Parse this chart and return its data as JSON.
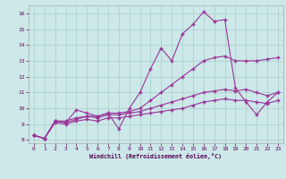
{
  "xlabel": "Windchill (Refroidissement éolien,°C)",
  "background_color": "#cce8e8",
  "grid_color": "#aacccc",
  "line_color": "#993399",
  "xlim": [
    -0.5,
    23.5
  ],
  "ylim": [
    7.8,
    16.5
  ],
  "yticks": [
    8,
    9,
    10,
    11,
    12,
    13,
    14,
    15,
    16
  ],
  "xticks": [
    0,
    1,
    2,
    3,
    4,
    5,
    6,
    7,
    8,
    9,
    10,
    11,
    12,
    13,
    14,
    15,
    16,
    17,
    18,
    19,
    20,
    21,
    22,
    23
  ],
  "s1": [
    [
      0,
      8.3
    ],
    [
      1,
      8.1
    ],
    [
      2,
      9.2
    ],
    [
      3,
      9.1
    ],
    [
      4,
      9.9
    ],
    [
      5,
      9.7
    ],
    [
      6,
      9.5
    ],
    [
      7,
      9.7
    ],
    [
      8,
      8.7
    ],
    [
      9,
      10.0
    ],
    [
      10,
      11.0
    ],
    [
      11,
      12.5
    ],
    [
      12,
      13.8
    ],
    [
      13,
      13.0
    ],
    [
      14,
      14.7
    ],
    [
      15,
      15.3
    ],
    [
      16,
      16.1
    ],
    [
      17,
      15.5
    ],
    [
      18,
      15.6
    ],
    [
      19,
      11.3
    ],
    [
      20,
      10.4
    ],
    [
      21,
      9.6
    ],
    [
      22,
      10.4
    ],
    [
      23,
      11.0
    ]
  ],
  "s2": [
    [
      0,
      8.3
    ],
    [
      1,
      8.1
    ],
    [
      2,
      9.2
    ],
    [
      3,
      9.2
    ],
    [
      4,
      9.4
    ],
    [
      5,
      9.5
    ],
    [
      6,
      9.5
    ],
    [
      7,
      9.7
    ],
    [
      8,
      9.7
    ],
    [
      9,
      9.8
    ],
    [
      10,
      10.0
    ],
    [
      11,
      10.5
    ],
    [
      12,
      11.0
    ],
    [
      13,
      11.5
    ],
    [
      14,
      12.0
    ],
    [
      15,
      12.5
    ],
    [
      16,
      13.0
    ],
    [
      17,
      13.2
    ],
    [
      18,
      13.3
    ],
    [
      19,
      13.0
    ],
    [
      20,
      13.0
    ],
    [
      21,
      13.0
    ],
    [
      22,
      13.1
    ],
    [
      23,
      13.2
    ]
  ],
  "s3": [
    [
      0,
      8.3
    ],
    [
      1,
      8.1
    ],
    [
      2,
      9.2
    ],
    [
      3,
      9.1
    ],
    [
      4,
      9.3
    ],
    [
      5,
      9.5
    ],
    [
      6,
      9.4
    ],
    [
      7,
      9.6
    ],
    [
      8,
      9.6
    ],
    [
      9,
      9.7
    ],
    [
      10,
      9.8
    ],
    [
      11,
      10.0
    ],
    [
      12,
      10.2
    ],
    [
      13,
      10.4
    ],
    [
      14,
      10.6
    ],
    [
      15,
      10.8
    ],
    [
      16,
      11.0
    ],
    [
      17,
      11.1
    ],
    [
      18,
      11.2
    ],
    [
      19,
      11.1
    ],
    [
      20,
      11.2
    ],
    [
      21,
      11.0
    ],
    [
      22,
      10.8
    ],
    [
      23,
      11.0
    ]
  ],
  "s4": [
    [
      0,
      8.3
    ],
    [
      1,
      8.1
    ],
    [
      2,
      9.1
    ],
    [
      3,
      9.0
    ],
    [
      4,
      9.2
    ],
    [
      5,
      9.3
    ],
    [
      6,
      9.2
    ],
    [
      7,
      9.4
    ],
    [
      8,
      9.4
    ],
    [
      9,
      9.5
    ],
    [
      10,
      9.6
    ],
    [
      11,
      9.7
    ],
    [
      12,
      9.8
    ],
    [
      13,
      9.9
    ],
    [
      14,
      10.0
    ],
    [
      15,
      10.2
    ],
    [
      16,
      10.4
    ],
    [
      17,
      10.5
    ],
    [
      18,
      10.6
    ],
    [
      19,
      10.5
    ],
    [
      20,
      10.5
    ],
    [
      21,
      10.4
    ],
    [
      22,
      10.3
    ],
    [
      23,
      10.5
    ]
  ]
}
